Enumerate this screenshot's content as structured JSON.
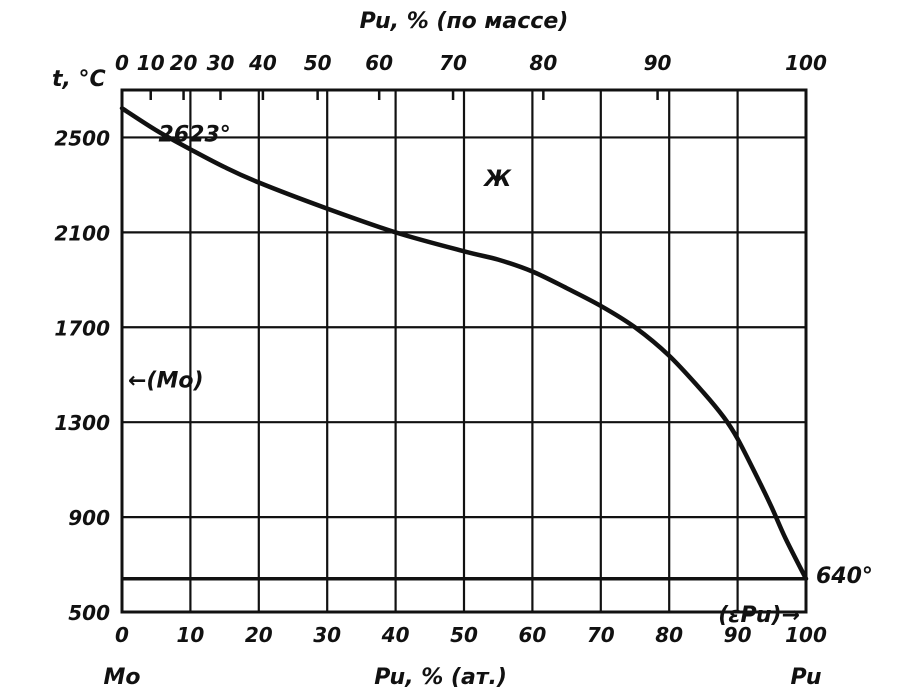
{
  "chart_data": {
    "type": "line",
    "title": "",
    "top_axis": {
      "label": "Pu, % (по массе)",
      "ticks": [
        {
          "label": "0",
          "at_pct": 0
        },
        {
          "label": "10",
          "at_pct": 4.2
        },
        {
          "label": "20",
          "at_pct": 9.0
        },
        {
          "label": "30",
          "at_pct": 14.4
        },
        {
          "label": "40",
          "at_pct": 20.6
        },
        {
          "label": "50",
          "at_pct": 28.6
        },
        {
          "label": "60",
          "at_pct": 37.6
        },
        {
          "label": "70",
          "at_pct": 48.4
        },
        {
          "label": "80",
          "at_pct": 61.6
        },
        {
          "label": "90",
          "at_pct": 78.3
        },
        {
          "label": "100",
          "at_pct": 100
        }
      ]
    },
    "xlabel": "Pu, % (ат.)",
    "x_left_label": "Mo",
    "x_right_label": "Pu",
    "x_ticks": [
      "0",
      "10",
      "20",
      "30",
      "40",
      "50",
      "60",
      "70",
      "80",
      "90",
      "100"
    ],
    "xlim": [
      0,
      100
    ],
    "ylabel": "t, °C",
    "y_ticks": [
      "500",
      "900",
      "1300",
      "1700",
      "2100",
      "2500"
    ],
    "ylim": [
      500,
      2700
    ],
    "grid": true,
    "series": [
      {
        "x": [
          0,
          5,
          10,
          15,
          20,
          30,
          40,
          50,
          55,
          60,
          65,
          70,
          75,
          80,
          85,
          88,
          90,
          93,
          95,
          97,
          100
        ],
        "y": [
          2623,
          2530,
          2450,
          2375,
          2310,
          2200,
          2100,
          2020,
          1985,
          1935,
          1865,
          1790,
          1700,
          1580,
          1425,
          1320,
          1230,
          1060,
          940,
          810,
          640
        ]
      }
    ],
    "annotations": [
      {
        "text": "2623°",
        "x": 3,
        "y": 2575
      },
      {
        "text": "Ж",
        "x": 55,
        "y": 2330
      },
      {
        "text": "←(Mo)",
        "x": 0,
        "y": 1480
      },
      {
        "text": "640°",
        "x": 100,
        "y": 640
      },
      {
        "text": "(εPu)→",
        "x": 100,
        "y": 560
      }
    ],
    "horizontal_lines": [
      {
        "y": 640
      }
    ]
  }
}
